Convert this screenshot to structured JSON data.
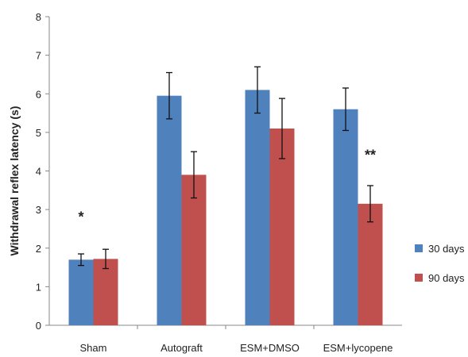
{
  "chart_data": {
    "type": "bar",
    "title": "",
    "xlabel": "",
    "ylabel": "Withdrawal reflex latency (s)",
    "ylim": [
      0,
      8
    ],
    "yticks": [
      0,
      1,
      2,
      3,
      4,
      5,
      6,
      7,
      8
    ],
    "grid": false,
    "legend_position": "right",
    "categories": [
      "Sham",
      "Autograft",
      "ESM+DMSO",
      "ESM+lycopene"
    ],
    "series": [
      {
        "name": "30 days",
        "color": "#4f81bd",
        "values": [
          1.7,
          5.95,
          6.1,
          5.6
        ],
        "errors": [
          0.15,
          0.6,
          0.6,
          0.55
        ]
      },
      {
        "name": "90 days",
        "color": "#c0504d",
        "values": [
          1.72,
          3.9,
          5.1,
          3.15
        ],
        "errors": [
          0.25,
          0.6,
          0.78,
          0.47
        ]
      }
    ],
    "annotations": [
      {
        "text": "*",
        "category": "Sham",
        "y": 2.85
      },
      {
        "text": "**",
        "category": "ESM+lycopene",
        "y": 4.45
      }
    ]
  }
}
